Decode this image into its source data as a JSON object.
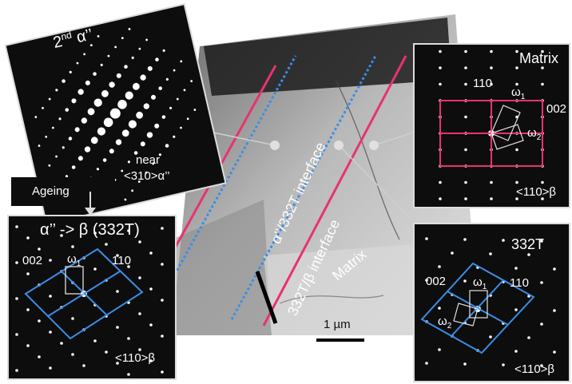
{
  "panels": {
    "alpha2": {
      "title_main": "2",
      "title_sup": "nd",
      "title_rest": " α’’",
      "near": "near",
      "zone": "<310>α’’"
    },
    "ageing": {
      "label": "Ageing"
    },
    "transform": {
      "title": "α’’ -> β (332T)",
      "idx_a": "002",
      "idx_b": "110",
      "omega1": "ω",
      "omega1_sub": "1",
      "zone": "<110>β"
    },
    "matrix": {
      "title": "Matrix",
      "idx_a": "110",
      "idx_b": "002",
      "omega1": "ω",
      "omega1_sub": "1",
      "omega2": "ω",
      "omega2_sub": "2",
      "zone": "<110>β"
    },
    "twin": {
      "title": "332T",
      "idx_a": "002",
      "idx_b": "110",
      "omega1": "ω",
      "omega1_sub": "1",
      "omega2": "ω",
      "omega2_sub": "2",
      "zone": "<110>β"
    }
  },
  "micrograph": {
    "interface1": "α’’/332T interface",
    "interface2": "332T/β interface",
    "matrix": "Matrix",
    "scale": "1 µm"
  },
  "colors": {
    "pink": "#e8336d",
    "blue": "#3a8ee6",
    "panel_bg": "#0d0d0d"
  }
}
